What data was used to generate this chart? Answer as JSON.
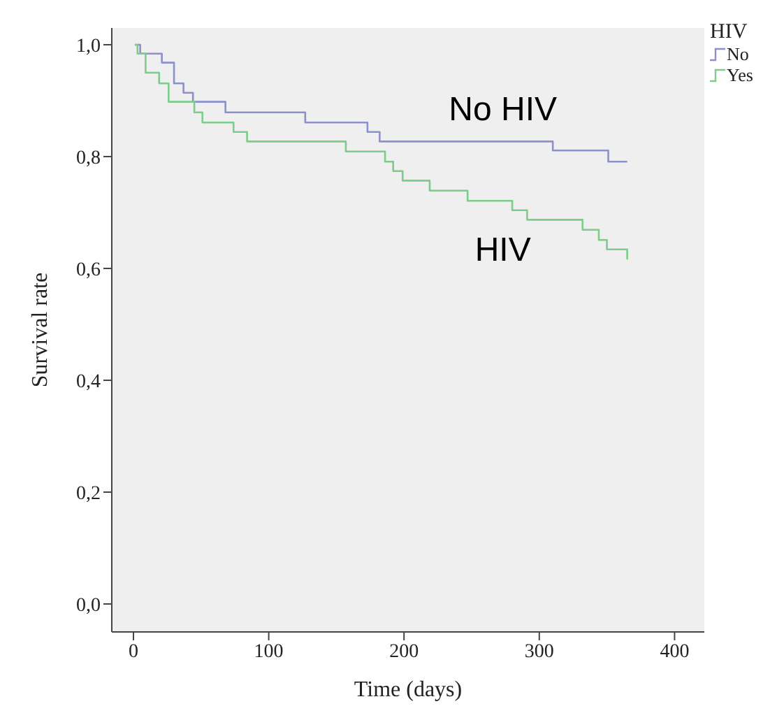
{
  "chart_data": {
    "type": "step",
    "xlabel": "Time (days)",
    "ylabel": "Survival rate",
    "legend_title": "HIV",
    "legend": "top right",
    "grid": false,
    "marker": "none",
    "line_style": "solid",
    "xlim": [
      -16,
      422
    ],
    "xticks": [
      0,
      100,
      200,
      300,
      400
    ],
    "ylim": [
      -0.05,
      1.03
    ],
    "yticks": [
      {
        "value": 0,
        "label": "0,0"
      },
      {
        "value": 0.2,
        "label": "0,2"
      },
      {
        "value": 0.4,
        "label": "0,4"
      },
      {
        "value": 0.6,
        "label": "0,6"
      },
      {
        "value": 0.8,
        "label": "0,8"
      },
      {
        "value": 1,
        "label": "1,0"
      }
    ],
    "series": [
      {
        "name": "No",
        "color": "#8c90cc",
        "x": [
          1,
          5,
          21,
          30,
          37,
          44,
          68,
          127,
          173,
          182,
          310,
          351,
          365
        ],
        "values": [
          1,
          0.984,
          0.968,
          0.931,
          0.914,
          0.898,
          0.879,
          0.861,
          0.844,
          0.827,
          0.811,
          0.791,
          0.791
        ]
      },
      {
        "name": "Yes",
        "color": "#7dcc8c",
        "x": [
          1,
          3,
          9,
          19,
          26,
          45,
          51,
          74,
          84,
          157,
          186,
          192,
          199,
          219,
          247,
          280,
          291,
          332,
          344,
          350,
          365
        ],
        "values": [
          1,
          0.984,
          0.95,
          0.931,
          0.898,
          0.879,
          0.861,
          0.844,
          0.827,
          0.809,
          0.791,
          0.774,
          0.757,
          0.739,
          0.721,
          0.704,
          0.687,
          0.669,
          0.651,
          0.634,
          0.616
        ]
      }
    ],
    "annotations": [
      "No HIV",
      "HIV"
    ]
  }
}
